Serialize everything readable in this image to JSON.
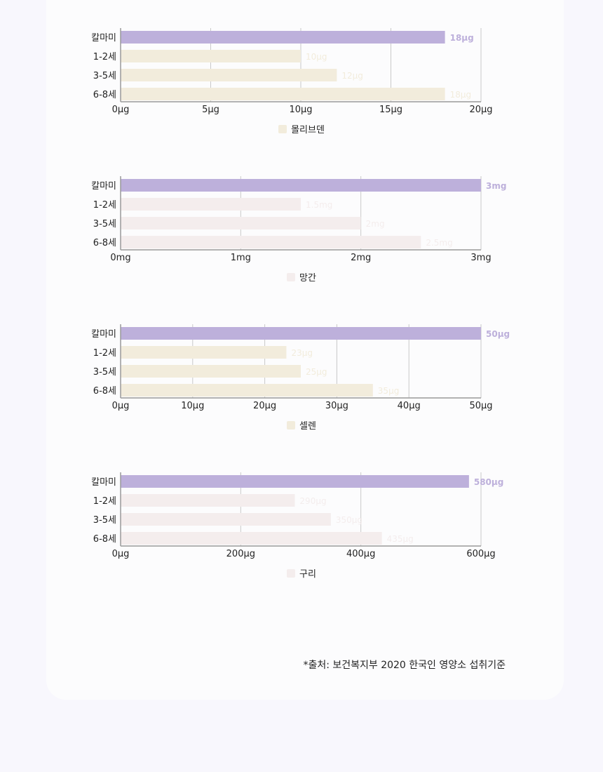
{
  "source_note": "*출처: 보건복지부 2020 한국인 영양소 섭취기준",
  "colors": {
    "highlight": "#bdb0db",
    "beige": "#f2ecdc",
    "pink": "#f4eded",
    "axis": "#9a9a9a",
    "grid": "#c9c9c9"
  },
  "chart_data": [
    {
      "type": "bar",
      "orientation": "horizontal",
      "categories": [
        "칼마미",
        "1-2세",
        "3-5세",
        "6-8세"
      ],
      "values": [
        18,
        10,
        12,
        18
      ],
      "value_labels": [
        "18μg",
        "10μg",
        "12μg",
        "18μg"
      ],
      "xlim": [
        0,
        20
      ],
      "xticks": [
        0,
        5,
        10,
        15,
        20
      ],
      "xtick_labels": [
        "0μg",
        "5μg",
        "10μg",
        "15μg",
        "20μg"
      ],
      "legend": "몰리브덴",
      "color": "#f2ecdc",
      "highlight_color": "#bdb0db",
      "grid": true
    },
    {
      "type": "bar",
      "orientation": "horizontal",
      "categories": [
        "칼마미",
        "1-2세",
        "3-5세",
        "6-8세"
      ],
      "values": [
        3,
        1.5,
        2,
        2.5
      ],
      "value_labels": [
        "3mg",
        "1.5mg",
        "2mg",
        "2.5mg"
      ],
      "xlim": [
        0,
        3
      ],
      "xticks": [
        0,
        1,
        2,
        3
      ],
      "xtick_labels": [
        "0mg",
        "1mg",
        "2mg",
        "3mg"
      ],
      "legend": "망간",
      "color": "#f4eded",
      "highlight_color": "#bdb0db",
      "grid": true
    },
    {
      "type": "bar",
      "orientation": "horizontal",
      "categories": [
        "칼마미",
        "1-2세",
        "3-5세",
        "6-8세"
      ],
      "values": [
        50,
        23,
        25,
        35
      ],
      "value_labels": [
        "50μg",
        "23μg",
        "25μg",
        "35μg"
      ],
      "xlim": [
        0,
        50
      ],
      "xticks": [
        0,
        10,
        20,
        30,
        40,
        50
      ],
      "xtick_labels": [
        "0μg",
        "10μg",
        "20μg",
        "30μg",
        "40μg",
        "50μg"
      ],
      "legend": "셀렌",
      "color": "#f2ecdc",
      "highlight_color": "#bdb0db",
      "grid": true
    },
    {
      "type": "bar",
      "orientation": "horizontal",
      "categories": [
        "칼마미",
        "1-2세",
        "3-5세",
        "6-8세"
      ],
      "values": [
        580,
        290,
        350,
        435
      ],
      "value_labels": [
        "580μg",
        "290μg",
        "350μg",
        "435μg"
      ],
      "xlim": [
        0,
        600
      ],
      "xticks": [
        0,
        200,
        400,
        600
      ],
      "xtick_labels": [
        "0μg",
        "200μg",
        "400μg",
        "600μg"
      ],
      "legend": "구리",
      "color": "#f4eded",
      "highlight_color": "#bdb0db",
      "grid": true
    }
  ]
}
